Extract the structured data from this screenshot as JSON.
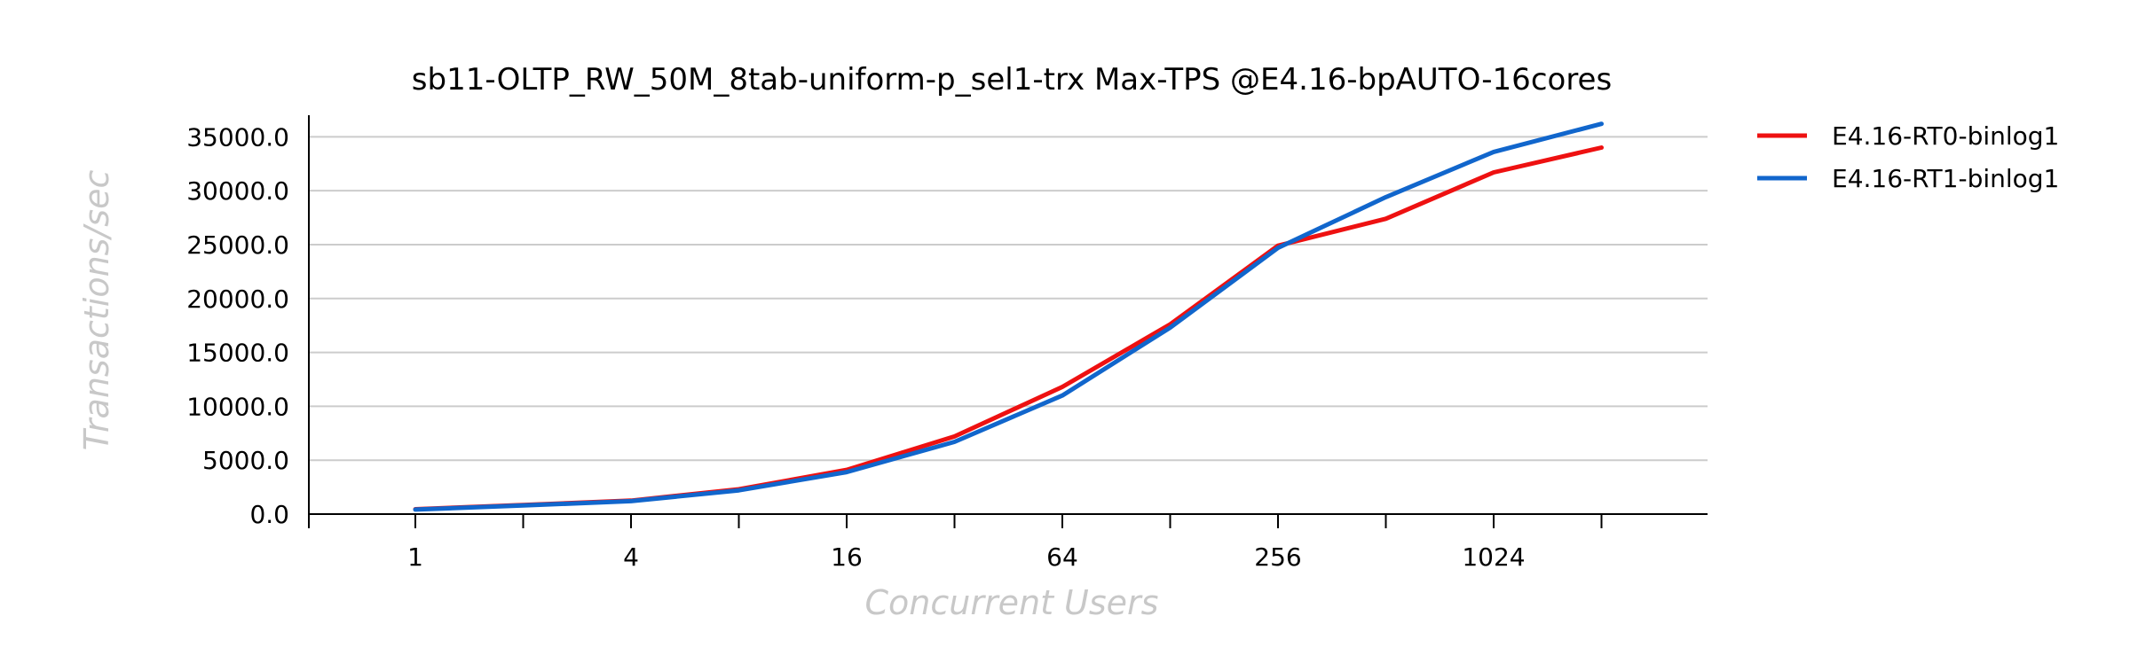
{
  "chart_data": {
    "type": "line",
    "title": "sb11-OLTP_RW_50M_8tab-uniform-p_sel1-trx Max-TPS @E4.16-bpAUTO-16cores",
    "xlabel": "Concurrent Users",
    "ylabel": "Transactions/sec",
    "x_scale": "log2",
    "x": [
      1,
      2,
      4,
      8,
      16,
      32,
      64,
      128,
      256,
      512,
      1024,
      2048
    ],
    "x_tick_labels": [
      "1",
      "4",
      "16",
      "64",
      "256",
      "1024"
    ],
    "x_tick_values": [
      1,
      4,
      16,
      64,
      256,
      1024
    ],
    "ylim": [
      0,
      37000
    ],
    "y_ticks": [
      0,
      5000,
      10000,
      15000,
      20000,
      25000,
      30000,
      35000
    ],
    "y_tick_labels": [
      "0.0",
      "5000.0",
      "10000.0",
      "15000.0",
      "20000.0",
      "25000.0",
      "30000.0",
      "35000.0"
    ],
    "grid": "horizontal",
    "legend_position": "right",
    "series": [
      {
        "name": "E4.16-RT0-binlog1",
        "color": "#ee1111",
        "values": [
          450,
          850,
          1250,
          2300,
          4100,
          7200,
          11800,
          17600,
          24900,
          27400,
          31700,
          34000
        ]
      },
      {
        "name": "E4.16-RT1-binlog1",
        "color": "#1166cc",
        "values": [
          420,
          800,
          1200,
          2200,
          3900,
          6700,
          11000,
          17300,
          24700,
          29400,
          33600,
          36200
        ]
      }
    ]
  }
}
